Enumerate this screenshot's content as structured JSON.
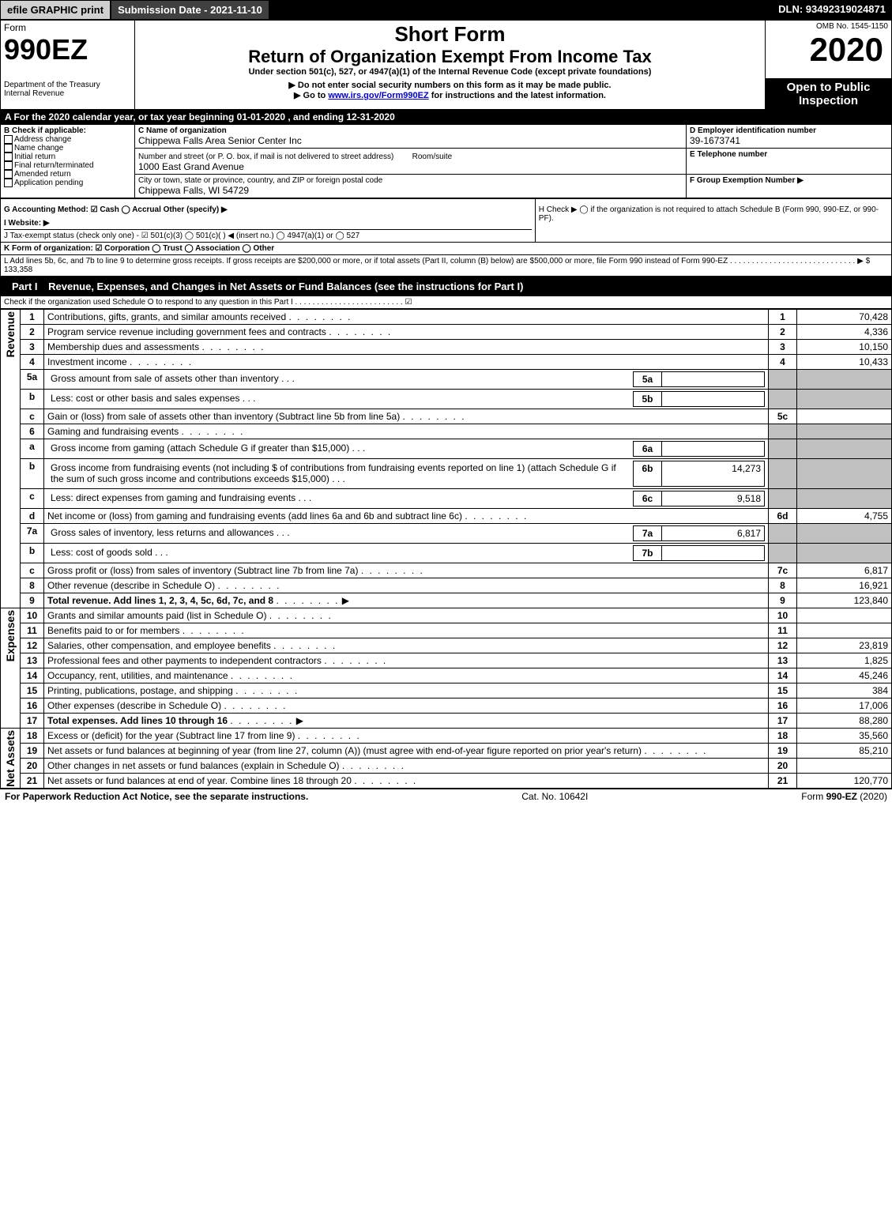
{
  "topbar": {
    "efile": "efile GRAPHIC print",
    "submission": "Submission Date - 2021-11-10",
    "dln": "DLN: 93492319024871"
  },
  "header": {
    "form_word": "Form",
    "form_number": "990EZ",
    "dept": "Department of the Treasury\nInternal Revenue",
    "short_form": "Short Form",
    "return_title": "Return of Organization Exempt From Income Tax",
    "under": "Under section 501(c), 527, or 4947(a)(1) of the Internal Revenue Code (except private foundations)",
    "warn": "▶ Do not enter social security numbers on this form as it may be made public.",
    "goto_pre": "▶ Go to ",
    "goto_link": "www.irs.gov/Form990EZ",
    "goto_post": " for instructions and the latest information.",
    "omb": "OMB No. 1545-1150",
    "year": "2020",
    "open": "Open to Public Inspection"
  },
  "lineA": "A  For the 2020 calendar year, or tax year beginning 01-01-2020 , and ending 12-31-2020",
  "boxB": {
    "title": "B  Check if applicable:",
    "items": [
      "Address change",
      "Name change",
      "Initial return",
      "Final return/terminated",
      "Amended return",
      "Application pending"
    ]
  },
  "boxC": {
    "label": "C Name of organization",
    "name": "Chippewa Falls Area Senior Center Inc",
    "street_label": "Number and street (or P. O. box, if mail is not delivered to street address)",
    "room": "Room/suite",
    "street": "1000 East Grand Avenue",
    "city_label": "City or town, state or province, country, and ZIP or foreign postal code",
    "city": "Chippewa Falls, WI  54729"
  },
  "boxD": {
    "label": "D Employer identification number",
    "value": "39-1673741"
  },
  "boxE": {
    "label": "E Telephone number",
    "value": ""
  },
  "boxF": {
    "label": "F Group Exemption Number  ▶",
    "value": ""
  },
  "lineG": "G Accounting Method:  ☑ Cash  ◯ Accrual  Other (specify) ▶",
  "lineH": "H   Check ▶  ◯  if the organization is not required to attach Schedule B (Form 990, 990-EZ, or 990-PF).",
  "lineI": "I Website: ▶",
  "lineJ": "J Tax-exempt status (check only one) - ☑ 501(c)(3) ◯ 501(c)(  ) ◀ (insert no.) ◯ 4947(a)(1) or ◯ 527",
  "lineK": "K Form of organization:  ☑ Corporation  ◯ Trust  ◯ Association  ◯ Other",
  "lineL": "L Add lines 5b, 6c, and 7b to line 9 to determine gross receipts. If gross receipts are $200,000 or more, or if total assets (Part II, column (B) below) are $500,000 or more, file Form 990 instead of Form 990-EZ  . . . . . . . . . . . . . . . . . . . . . . . . . . . . .  ▶ $ 133,358",
  "part1": {
    "label": "Part I",
    "title": "Revenue, Expenses, and Changes in Net Assets or Fund Balances (see the instructions for Part I)",
    "check": "Check if the organization used Schedule O to respond to any question in this Part I . . . . . . . . . . . . . . . . . . . . . . . . .  ☑"
  },
  "sections": {
    "revenue": "Revenue",
    "expenses": "Expenses",
    "netassets": "Net Assets"
  },
  "rows": [
    {
      "n": "1",
      "t": "Contributions, gifts, grants, and similar amounts received",
      "r": "1",
      "v": "70,428"
    },
    {
      "n": "2",
      "t": "Program service revenue including government fees and contracts",
      "r": "2",
      "v": "4,336"
    },
    {
      "n": "3",
      "t": "Membership dues and assessments",
      "r": "3",
      "v": "10,150"
    },
    {
      "n": "4",
      "t": "Investment income",
      "r": "4",
      "v": "10,433"
    },
    {
      "n": "5a",
      "t": "Gross amount from sale of assets other than inventory",
      "mid": "5a",
      "midv": ""
    },
    {
      "n": "b",
      "t": "Less: cost or other basis and sales expenses",
      "mid": "5b",
      "midv": ""
    },
    {
      "n": "c",
      "t": "Gain or (loss) from sale of assets other than inventory (Subtract line 5b from line 5a)",
      "r": "5c",
      "v": ""
    },
    {
      "n": "6",
      "t": "Gaming and fundraising events"
    },
    {
      "n": "a",
      "t": "Gross income from gaming (attach Schedule G if greater than $15,000)",
      "mid": "6a",
      "midv": ""
    },
    {
      "n": "b",
      "t": "Gross income from fundraising events (not including $                     of contributions from fundraising events reported on line 1) (attach Schedule G if the sum of such gross income and contributions exceeds $15,000)",
      "mid": "6b",
      "midv": "14,273"
    },
    {
      "n": "c",
      "t": "Less: direct expenses from gaming and fundraising events",
      "mid": "6c",
      "midv": "9,518"
    },
    {
      "n": "d",
      "t": "Net income or (loss) from gaming and fundraising events (add lines 6a and 6b and subtract line 6c)",
      "r": "6d",
      "v": "4,755"
    },
    {
      "n": "7a",
      "t": "Gross sales of inventory, less returns and allowances",
      "mid": "7a",
      "midv": "6,817"
    },
    {
      "n": "b",
      "t": "Less: cost of goods sold",
      "mid": "7b",
      "midv": ""
    },
    {
      "n": "c",
      "t": "Gross profit or (loss) from sales of inventory (Subtract line 7b from line 7a)",
      "r": "7c",
      "v": "6,817"
    },
    {
      "n": "8",
      "t": "Other revenue (describe in Schedule O)",
      "r": "8",
      "v": "16,921"
    },
    {
      "n": "9",
      "t": "Total revenue. Add lines 1, 2, 3, 4, 5c, 6d, 7c, and 8",
      "r": "9",
      "v": "123,840",
      "bold": true,
      "arrow": true
    },
    {
      "n": "10",
      "t": "Grants and similar amounts paid (list in Schedule O)",
      "r": "10",
      "v": ""
    },
    {
      "n": "11",
      "t": "Benefits paid to or for members",
      "r": "11",
      "v": ""
    },
    {
      "n": "12",
      "t": "Salaries, other compensation, and employee benefits",
      "r": "12",
      "v": "23,819"
    },
    {
      "n": "13",
      "t": "Professional fees and other payments to independent contractors",
      "r": "13",
      "v": "1,825"
    },
    {
      "n": "14",
      "t": "Occupancy, rent, utilities, and maintenance",
      "r": "14",
      "v": "45,246"
    },
    {
      "n": "15",
      "t": "Printing, publications, postage, and shipping",
      "r": "15",
      "v": "384"
    },
    {
      "n": "16",
      "t": "Other expenses (describe in Schedule O)",
      "r": "16",
      "v": "17,006"
    },
    {
      "n": "17",
      "t": "Total expenses. Add lines 10 through 16",
      "r": "17",
      "v": "88,280",
      "bold": true,
      "arrow": true
    },
    {
      "n": "18",
      "t": "Excess or (deficit) for the year (Subtract line 17 from line 9)",
      "r": "18",
      "v": "35,560"
    },
    {
      "n": "19",
      "t": "Net assets or fund balances at beginning of year (from line 27, column (A)) (must agree with end-of-year figure reported on prior year's return)",
      "r": "19",
      "v": "85,210"
    },
    {
      "n": "20",
      "t": "Other changes in net assets or fund balances (explain in Schedule O)",
      "r": "20",
      "v": ""
    },
    {
      "n": "21",
      "t": "Net assets or fund balances at end of year. Combine lines 18 through 20",
      "r": "21",
      "v": "120,770"
    }
  ],
  "footer": {
    "left": "For Paperwork Reduction Act Notice, see the separate instructions.",
    "mid": "Cat. No. 10642I",
    "right": "Form 990-EZ (2020)"
  }
}
